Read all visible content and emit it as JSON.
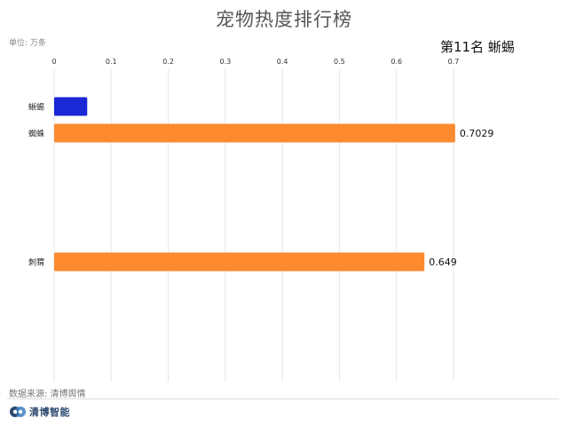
{
  "header": {
    "title": "宠物热度排行榜",
    "unit": "单位: 万条",
    "rank_label": "第11名 蜥蜴"
  },
  "footer": {
    "source": "数据来源: 清博舆情",
    "logo_text": "清博智能"
  },
  "colors": {
    "highlight": "#1a28d6",
    "bar": "#fd8a2f",
    "grid": "#e6e6e6"
  },
  "chart_data": {
    "type": "bar",
    "orientation": "horizontal",
    "title": "宠物热度排行榜",
    "xlabel": "",
    "ylabel": "",
    "xlim": [
      0,
      0.7
    ],
    "ticks": [
      "0",
      "0.1",
      "0.2",
      "0.3",
      "0.4",
      "0.5",
      "0.6",
      "0.7"
    ],
    "grid": true,
    "bars": [
      {
        "category": "蜥蜴",
        "value": 0.058,
        "label": "",
        "highlight": true
      },
      {
        "category": "蜘蛛",
        "value": 0.7029,
        "label": "0.7029",
        "highlight": false
      },
      {
        "category": "刺猬",
        "value": 0.649,
        "label": "0.649",
        "highlight": false
      }
    ]
  }
}
